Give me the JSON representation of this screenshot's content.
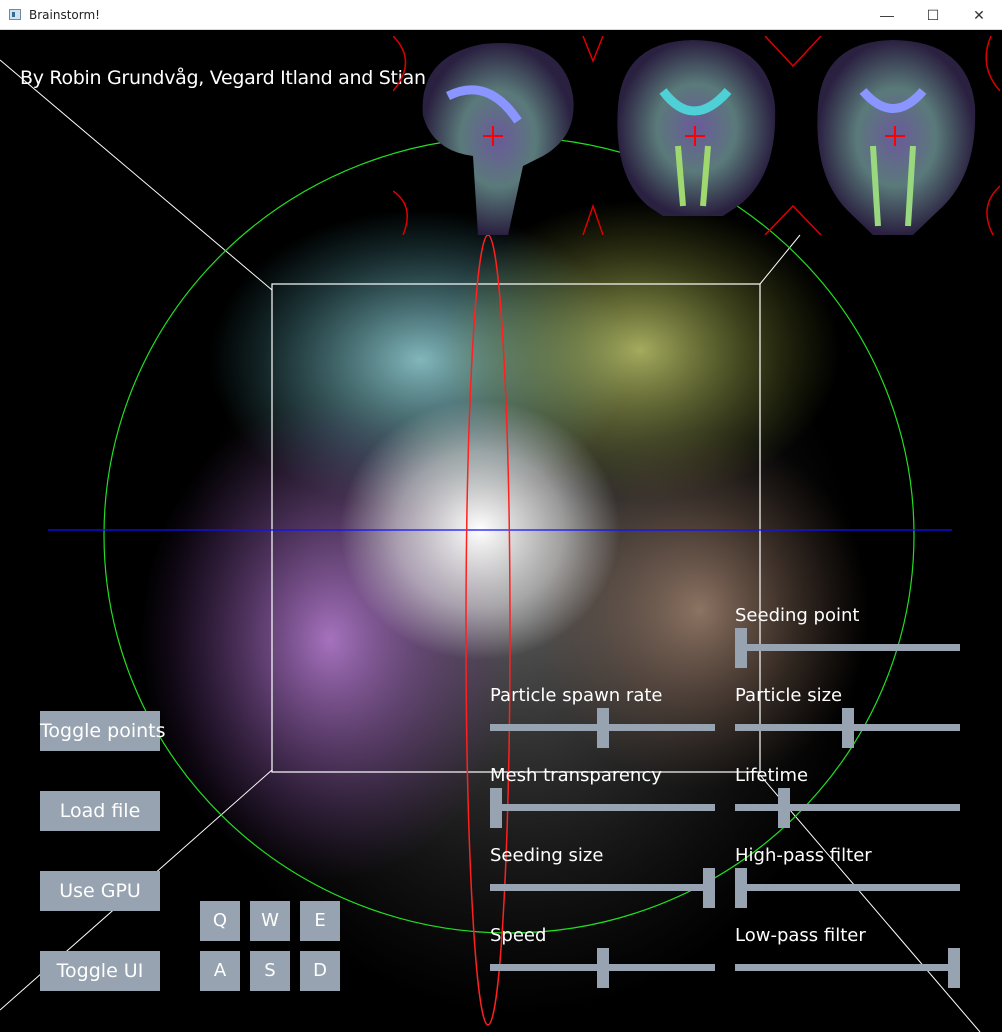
{
  "window": {
    "title": "Brainstorm!",
    "minimize": "—",
    "maximize": "☐",
    "close": "✕"
  },
  "credits": "By Robin Grundvåg, Vegard Itland and Stian Soltvedt",
  "buttons": {
    "toggle_points": "Toggle points",
    "load_file": "Load file",
    "use_gpu": "Use GPU",
    "toggle_ui": "Toggle UI"
  },
  "keys": [
    "Q",
    "W",
    "E",
    "A",
    "S",
    "D"
  ],
  "sliders": {
    "seeding_point": {
      "label": "Seeding point",
      "value": 0.0
    },
    "particle_spawn_rate": {
      "label": "Particle spawn rate",
      "value": 0.5
    },
    "particle_size": {
      "label": "Particle size",
      "value": 0.5
    },
    "mesh_transparency": {
      "label": "Mesh transparency",
      "value": 0.0
    },
    "lifetime": {
      "label": "Lifetime",
      "value": 0.2
    },
    "seeding_size": {
      "label": "Seeding size",
      "value": 1.0
    },
    "high_pass_filter": {
      "label": "High-pass filter",
      "value": 0.0
    },
    "speed": {
      "label": "Speed",
      "value": 0.5
    },
    "low_pass_filter": {
      "label": "Low-pass filter",
      "value": 1.0
    }
  },
  "colors": {
    "background": "#000000",
    "control": "#97a3b0",
    "gizmo_green": "#22dd22",
    "gizmo_blue": "#1010ff",
    "gizmo_red": "#ff2020",
    "crosshair": "#ff0000"
  }
}
